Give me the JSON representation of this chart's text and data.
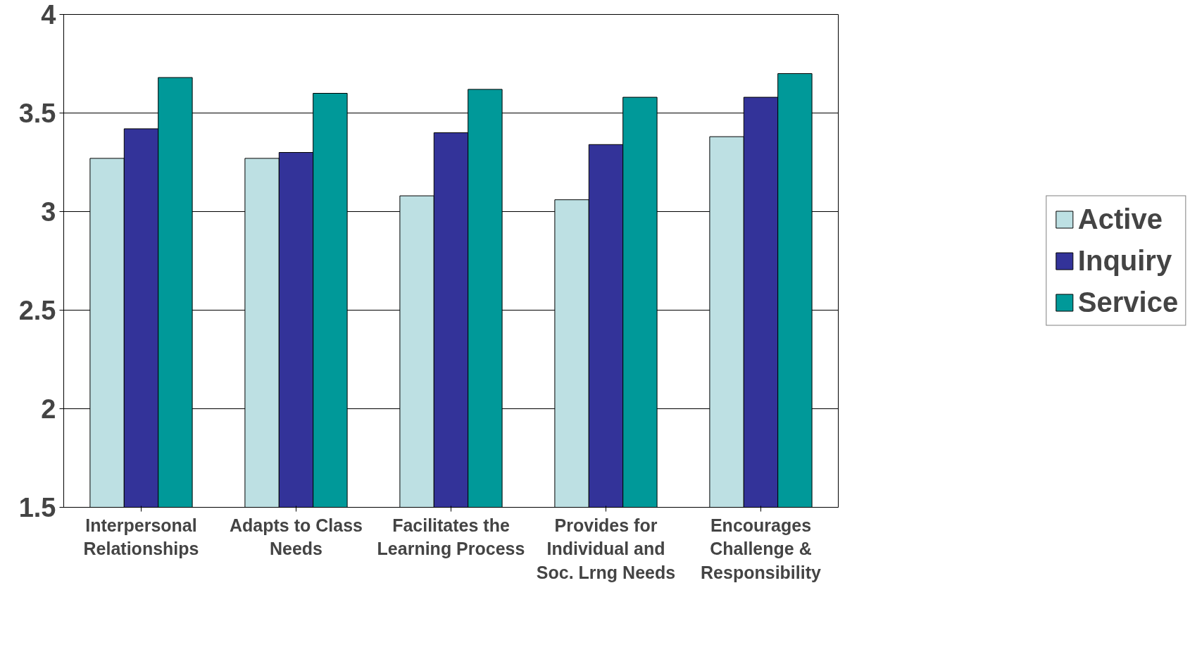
{
  "chart_data": {
    "type": "bar",
    "categories": [
      "Interpersonal Relationships",
      "Adapts to Class Needs",
      "Facilitates the Learning Process",
      "Provides for Individual and Soc. Lrng Needs",
      "Encourages Challenge & Responsibility"
    ],
    "series": [
      {
        "name": "Active",
        "color": "#bde0e3",
        "values": [
          3.27,
          3.27,
          3.08,
          3.06,
          3.38
        ]
      },
      {
        "name": "Inquiry",
        "color": "#333399",
        "values": [
          3.42,
          3.3,
          3.4,
          3.34,
          3.58
        ]
      },
      {
        "name": "Service",
        "color": "#009999",
        "values": [
          3.68,
          3.6,
          3.62,
          3.58,
          3.7
        ]
      }
    ],
    "ylim": [
      1.5,
      4
    ],
    "yticks": [
      1.5,
      2,
      2.5,
      3,
      3.5,
      4
    ],
    "grid": "y",
    "legend": "right"
  }
}
